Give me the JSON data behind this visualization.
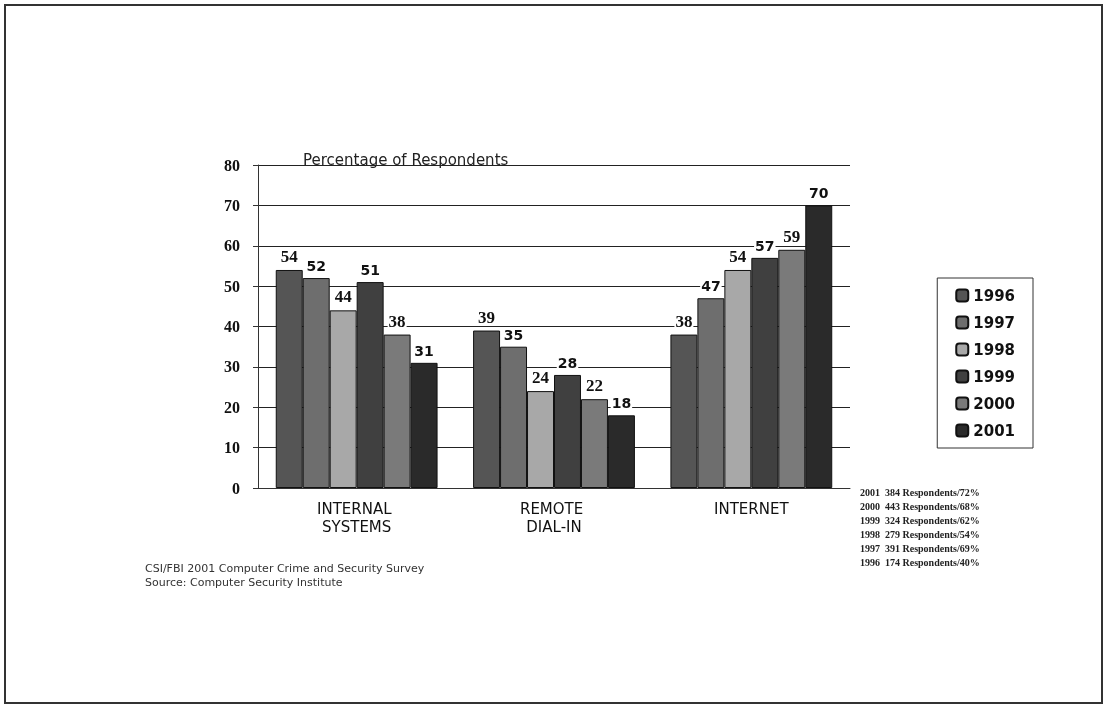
{
  "chart_data": {
    "type": "bar",
    "title": "Percentage of Respondents",
    "categories": [
      "INTERNAL SYSTEMS",
      "REMOTE DIAL-IN",
      "INTERNET"
    ],
    "series": [
      {
        "name": "1996",
        "color": "#555555",
        "values": [
          54,
          39,
          38
        ]
      },
      {
        "name": "1997",
        "color": "#6e6e6e",
        "values": [
          52,
          35,
          47
        ]
      },
      {
        "name": "1998",
        "color": "#a8a8a8",
        "values": [
          44,
          24,
          54
        ]
      },
      {
        "name": "1999",
        "color": "#404040",
        "values": [
          51,
          28,
          57
        ]
      },
      {
        "name": "2000",
        "color": "#7a7a7a",
        "values": [
          38,
          22,
          59
        ]
      },
      {
        "name": "2001",
        "color": "#2a2a2a",
        "values": [
          31,
          18,
          70
        ]
      }
    ],
    "ylim": [
      0,
      80
    ],
    "yticks": [
      0,
      10,
      20,
      30,
      40,
      50,
      60,
      70,
      80
    ],
    "grid": "y",
    "legend": "right",
    "data_labels": true,
    "annotations": [
      "2001  384 Respondents/72%",
      "2000  443 Respondents/68%",
      "1999  324 Respondents/62%",
      "1998  279 Respondents/54%",
      "1997  391 Respondents/69%",
      "1996  174 Respondents/40%",
      "CSI/FBI 2001 Computer Crime and Security Survey",
      "Source: Computer Security Institute"
    ]
  }
}
